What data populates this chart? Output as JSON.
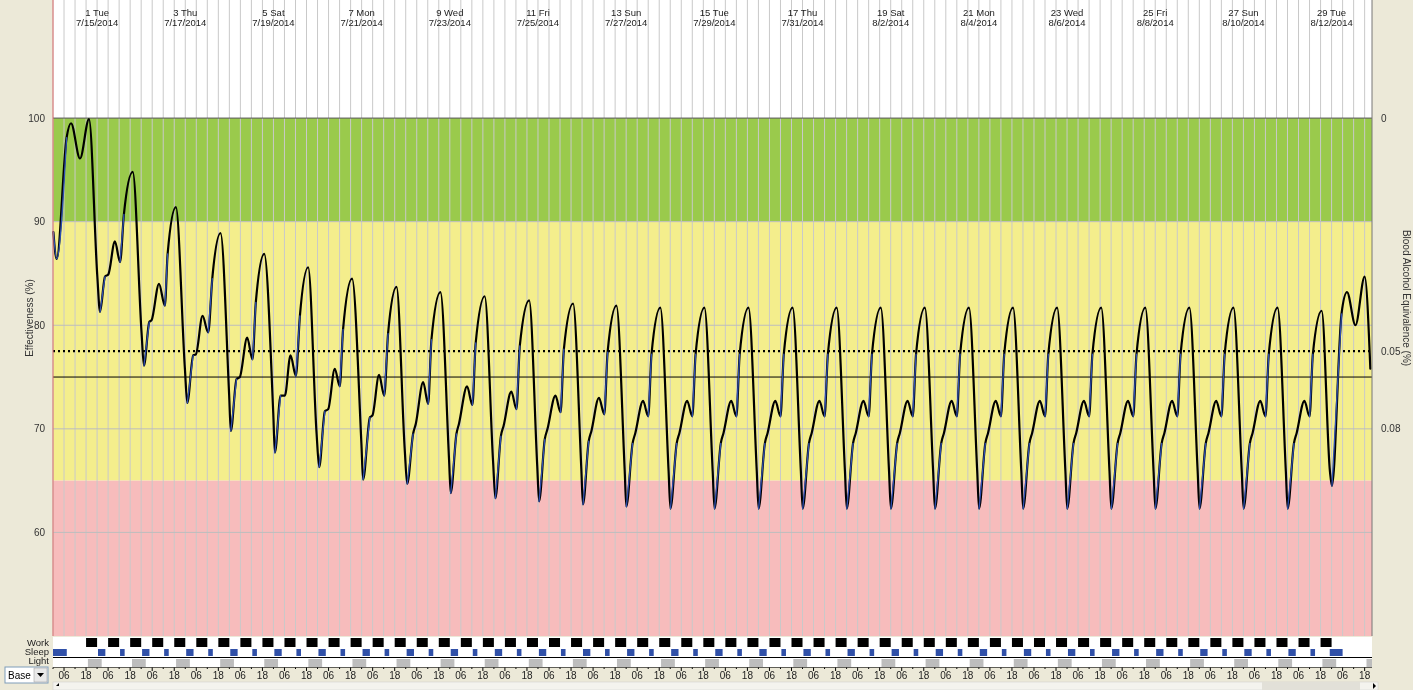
{
  "chart_data": {
    "type": "line",
    "ylabel": "Effectiveness (%)",
    "y2label": "Blood Alcohol Equivalence (%)",
    "xlim": [
      "2014-07-14T00:00",
      "2014-08-12T22:00"
    ],
    "xticks": [
      {
        "value": "2014-07-14T00:00",
        "label": null
      },
      {
        "value": "2014-07-14T06:00",
        "label": "06"
      },
      {
        "value": "2014-07-14T12:00",
        "label": null
      },
      {
        "value": "2014-07-14T18:00",
        "label": "18"
      },
      {
        "value": "2014-07-15T00:00",
        "label": null
      },
      {
        "value": "2014-07-15T06:00",
        "label": "06"
      },
      {
        "value": "2014-07-15T12:00",
        "label": null
      },
      {
        "value": "2014-07-15T18:00",
        "label": "18"
      },
      {
        "value": "2014-07-16T00:00",
        "label": null
      },
      {
        "value": "2014-07-16T06:00",
        "label": "06"
      },
      {
        "value": "2014-07-16T12:00",
        "label": null
      },
      {
        "value": "2014-07-16T18:00",
        "label": "18"
      },
      {
        "value": "2014-07-17T00:00",
        "label": null
      },
      {
        "value": "2014-07-17T06:00",
        "label": "06"
      },
      {
        "value": "2014-07-17T12:00",
        "label": null
      },
      {
        "value": "2014-07-17T18:00",
        "label": "18"
      },
      {
        "value": "2014-07-18T00:00",
        "label": null
      },
      {
        "value": "2014-07-18T06:00",
        "label": "06"
      },
      {
        "value": "2014-07-18T12:00",
        "label": null
      },
      {
        "value": "2014-07-18T18:00",
        "label": "18"
      },
      {
        "value": "2014-07-19T00:00",
        "label": null
      },
      {
        "value": "2014-07-19T06:00",
        "label": "06"
      },
      {
        "value": "2014-07-19T12:00",
        "label": null
      },
      {
        "value": "2014-07-19T18:00",
        "label": "18"
      },
      {
        "value": "2014-07-20T00:00",
        "label": null
      },
      {
        "value": "2014-07-20T06:00",
        "label": "06"
      },
      {
        "value": "2014-07-20T12:00",
        "label": null
      },
      {
        "value": "2014-07-20T18:00",
        "label": "18"
      },
      {
        "value": "2014-07-21T00:00",
        "label": null
      },
      {
        "value": "2014-07-21T06:00",
        "label": "06"
      },
      {
        "value": "2014-07-21T12:00",
        "label": null
      },
      {
        "value": "2014-07-21T18:00",
        "label": "18"
      },
      {
        "value": "2014-07-22T00:00",
        "label": null
      },
      {
        "value": "2014-07-22T06:00",
        "label": "06"
      },
      {
        "value": "2014-07-22T12:00",
        "label": null
      },
      {
        "value": "2014-07-22T18:00",
        "label": "18"
      },
      {
        "value": "2014-07-23T00:00",
        "label": null
      },
      {
        "value": "2014-07-23T06:00",
        "label": "06"
      },
      {
        "value": "2014-07-23T12:00",
        "label": null
      },
      {
        "value": "2014-07-23T18:00",
        "label": "18"
      },
      {
        "value": "2014-07-24T00:00",
        "label": null
      },
      {
        "value": "2014-07-24T06:00",
        "label": "06"
      },
      {
        "value": "2014-07-24T12:00",
        "label": null
      },
      {
        "value": "2014-07-24T18:00",
        "label": "18"
      },
      {
        "value": "2014-07-25T00:00",
        "label": null
      },
      {
        "value": "2014-07-25T06:00",
        "label": "06"
      },
      {
        "value": "2014-07-25T12:00",
        "label": null
      },
      {
        "value": "2014-07-25T18:00",
        "label": "18"
      },
      {
        "value": "2014-07-26T00:00",
        "label": null
      },
      {
        "value": "2014-07-26T06:00",
        "label": "06"
      },
      {
        "value": "2014-07-26T12:00",
        "label": null
      },
      {
        "value": "2014-07-26T18:00",
        "label": "18"
      },
      {
        "value": "2014-07-27T00:00",
        "label": null
      },
      {
        "value": "2014-07-27T06:00",
        "label": "06"
      },
      {
        "value": "2014-07-27T12:00",
        "label": null
      },
      {
        "value": "2014-07-27T18:00",
        "label": "18"
      },
      {
        "value": "2014-07-28T00:00",
        "label": null
      },
      {
        "value": "2014-07-28T06:00",
        "label": "06"
      },
      {
        "value": "2014-07-28T12:00",
        "label": null
      },
      {
        "value": "2014-07-28T18:00",
        "label": "18"
      },
      {
        "value": "2014-07-29T00:00",
        "label": null
      },
      {
        "value": "2014-07-29T06:00",
        "label": "06"
      },
      {
        "value": "2014-07-29T12:00",
        "label": null
      },
      {
        "value": "2014-07-29T18:00",
        "label": "18"
      },
      {
        "value": "2014-07-30T00:00",
        "label": null
      },
      {
        "value": "2014-07-30T06:00",
        "label": "06"
      },
      {
        "value": "2014-07-30T12:00",
        "label": null
      },
      {
        "value": "2014-07-30T18:00",
        "label": "18"
      },
      {
        "value": "2014-07-31T00:00",
        "label": null
      },
      {
        "value": "2014-07-31T06:00",
        "label": "06"
      },
      {
        "value": "2014-07-31T12:00",
        "label": null
      },
      {
        "value": "2014-07-31T18:00",
        "label": "18"
      },
      {
        "value": "2014-08-01T00:00",
        "label": null
      },
      {
        "value": "2014-08-01T06:00",
        "label": "06"
      },
      {
        "value": "2014-08-01T12:00",
        "label": null
      },
      {
        "value": "2014-08-01T18:00",
        "label": "18"
      },
      {
        "value": "2014-08-02T00:00",
        "label": null
      },
      {
        "value": "2014-08-02T06:00",
        "label": "06"
      },
      {
        "value": "2014-08-02T12:00",
        "label": null
      },
      {
        "value": "2014-08-02T18:00",
        "label": "18"
      },
      {
        "value": "2014-08-03T00:00",
        "label": null
      },
      {
        "value": "2014-08-03T06:00",
        "label": "06"
      },
      {
        "value": "2014-08-03T12:00",
        "label": null
      },
      {
        "value": "2014-08-03T18:00",
        "label": "18"
      },
      {
        "value": "2014-08-04T00:00",
        "label": null
      },
      {
        "value": "2014-08-04T06:00",
        "label": "06"
      },
      {
        "value": "2014-08-04T12:00",
        "label": null
      },
      {
        "value": "2014-08-04T18:00",
        "label": "18"
      },
      {
        "value": "2014-08-05T00:00",
        "label": null
      },
      {
        "value": "2014-08-05T06:00",
        "label": "06"
      },
      {
        "value": "2014-08-05T12:00",
        "label": null
      },
      {
        "value": "2014-08-05T18:00",
        "label": "18"
      },
      {
        "value": "2014-08-06T00:00",
        "label": null
      },
      {
        "value": "2014-08-06T06:00",
        "label": "06"
      },
      {
        "value": "2014-08-06T12:00",
        "label": null
      },
      {
        "value": "2014-08-06T18:00",
        "label": "18"
      },
      {
        "value": "2014-08-07T00:00",
        "label": null
      },
      {
        "value": "2014-08-07T06:00",
        "label": "06"
      },
      {
        "value": "2014-08-07T12:00",
        "label": null
      },
      {
        "value": "2014-08-07T18:00",
        "label": "18"
      },
      {
        "value": "2014-08-08T00:00",
        "label": null
      },
      {
        "value": "2014-08-08T06:00",
        "label": "06"
      },
      {
        "value": "2014-08-08T12:00",
        "label": null
      },
      {
        "value": "2014-08-08T18:00",
        "label": "18"
      },
      {
        "value": "2014-08-09T00:00",
        "label": null
      },
      {
        "value": "2014-08-09T06:00",
        "label": "06"
      },
      {
        "value": "2014-08-09T12:00",
        "label": null
      },
      {
        "value": "2014-08-09T18:00",
        "label": "18"
      },
      {
        "value": "2014-08-10T00:00",
        "label": null
      },
      {
        "value": "2014-08-10T06:00",
        "label": "06"
      },
      {
        "value": "2014-08-10T12:00",
        "label": null
      },
      {
        "value": "2014-08-10T18:00",
        "label": "18"
      },
      {
        "value": "2014-08-11T00:00",
        "label": null
      },
      {
        "value": "2014-08-11T06:00",
        "label": "06"
      },
      {
        "value": "2014-08-11T12:00",
        "label": null
      },
      {
        "value": "2014-08-11T18:00",
        "label": "18"
      },
      {
        "value": "2014-08-12T00:00",
        "label": null
      },
      {
        "value": "2014-08-12T06:00",
        "label": "06"
      },
      {
        "value": "2014-08-12T12:00",
        "label": null
      },
      {
        "value": "2014-08-12T18:00",
        "label": "18"
      }
    ],
    "x2lim": [
      "2014-07-14T00:00",
      "2014-08-12T22:00"
    ],
    "x2ticks": [
      {
        "value": "2014-07-15",
        "label": "1 Tue\n7/15/2014"
      },
      {
        "value": "2014-07-17",
        "label": "3 Thu\n7/17/2014"
      },
      {
        "value": "2014-07-19",
        "label": "5 Sat\n7/19/2014"
      },
      {
        "value": "2014-07-21",
        "label": "7 Mon\n7/21/2014"
      },
      {
        "value": "2014-07-23",
        "label": "9 Wed\n7/23/2014"
      },
      {
        "value": "2014-07-25",
        "label": "11 Fri\n7/25/2014"
      },
      {
        "value": "2014-07-27",
        "label": "13 Sun\n7/27/2014"
      },
      {
        "value": "2014-07-29",
        "label": "15 Tue\n7/29/2014"
      },
      {
        "value": "2014-07-31",
        "label": "17 Thu\n7/31/2014"
      },
      {
        "value": "2014-08-02",
        "label": "19 Sat\n8/2/2014"
      },
      {
        "value": "2014-08-04",
        "label": "21 Mon\n8/4/2014"
      },
      {
        "value": "2014-08-06",
        "label": "23 Wed\n8/6/2014"
      },
      {
        "value": "2014-08-08",
        "label": "25 Fri\n8/8/2014"
      },
      {
        "value": "2014-08-10",
        "label": "27 Sun\n8/10/2014"
      },
      {
        "value": "2014-08-12",
        "label": "29 Tue\n8/12/2014"
      }
    ],
    "ylim": [
      50,
      111.4
    ],
    "yticks": [
      60,
      70,
      80,
      90,
      100
    ],
    "grid": true,
    "bands": [
      {
        "axis": "y",
        "from": 90,
        "to": 100,
        "color": "#9aca4c"
      },
      {
        "axis": "y",
        "from": 65,
        "to": 90,
        "color": "#f4ee8c"
      },
      {
        "axis": "y",
        "from": 50,
        "to": 65,
        "color": "#f7bcbc"
      }
    ],
    "ref_lines": [
      {
        "axis": "y",
        "value": 100,
        "color": "#555555",
        "line_style": "solid"
      },
      {
        "axis": "y",
        "value": 77.5,
        "color": "#000000",
        "line_style": "dotted"
      },
      {
        "axis": "y",
        "value": 70,
        "color": "#bdbdbd",
        "line_style": "solid"
      },
      {
        "axis": "y",
        "value": 75,
        "color": "#000000",
        "line_style": "solid"
      }
    ],
    "annotations": [
      "Work",
      "Sleep",
      "Light",
      "Base",
      "0",
      "0.05",
      "0.08"
    ],
    "series": [
      {
        "color": "#000000",
        "x": [
          "2014-07-14T00:12",
          "2014-07-14T02:00",
          "2014-07-14T07:24",
          "2014-07-14T09:48",
          "2014-07-14T14:42",
          "2014-07-14T19:36",
          "2014-07-15T00:06",
          "2014-07-15T01:36",
          "2014-07-15T04:18",
          "2014-07-15T06:06",
          "2014-07-15T09:42",
          "2014-07-15T12:30",
          "2014-07-15T14:36",
          "2014-07-15T19:24",
          "2014-07-16T00:12",
          "2014-07-16T01:30",
          "2014-07-16T04:24",
          "2014-07-16T05:42",
          "2014-07-16T09:42",
          "2014-07-16T12:54",
          "2014-07-16T14:24",
          "2014-07-16T18:54",
          "2014-07-16T23:48",
          "2014-07-17T01:06",
          "2014-07-17T04:18",
          "2014-07-17T05:48",
          "2014-07-17T09:24",
          "2014-07-17T12:30",
          "2014-07-17T14:42",
          "2014-07-17T19:12",
          "2014-07-17T23:54",
          "2014-07-18T00:48",
          "2014-07-18T03:54",
          "2014-07-18T05:42",
          "2014-07-18T09:42",
          "2014-07-18T12:36",
          "2014-07-18T14:24",
          "2014-07-18T19:00",
          "2014-07-18T23:54",
          "2014-07-19T00:48",
          "2014-07-19T03:54",
          "2014-07-19T06:12",
          "2014-07-19T09:18",
          "2014-07-19T12:12",
          "2014-07-19T14:24",
          "2014-07-19T18:54",
          "2014-07-19T23:30",
          "2014-07-20T00:54",
          "2014-07-20T04:00",
          "2014-07-20T05:48",
          "2014-07-20T09:24",
          "2014-07-20T12:06",
          "2014-07-20T13:54",
          "2014-07-20T18:48",
          "2014-07-20T23:54",
          "2014-07-21T00:48",
          "2014-07-21T04:30",
          "2014-07-21T05:54",
          "2014-07-21T09:30",
          "2014-07-21T12:18",
          "2014-07-21T14:24",
          "2014-07-21T19:00",
          "2014-07-21T23:30",
          "2014-07-22T00:48",
          "2014-07-22T04:00",
          "2014-07-22T05:30",
          "2014-07-22T09:30",
          "2014-07-22T12:12",
          "2014-07-22T14:00",
          "2014-07-22T18:54",
          "2014-07-22T23:36",
          "2014-07-23T00:30",
          "2014-07-23T03:36",
          "2014-07-23T05:00",
          "2014-07-23T09:24",
          "2014-07-23T12:18",
          "2014-07-23T14:06",
          "2014-07-23T19:00",
          "2014-07-23T23:36",
          "2014-07-24T00:48",
          "2014-07-24T03:48",
          "2014-07-24T05:18",
          "2014-07-24T09:30",
          "2014-07-24T12:18",
          "2014-07-24T14:06",
          "2014-07-24T19:12",
          "2014-07-24T23:36",
          "2014-07-25T00:36",
          "2014-07-25T03:42",
          "2014-07-25T05:12",
          "2014-07-25T09:30",
          "2014-07-25T12:18",
          "2014-07-25T14:06",
          "2014-07-25T19:06",
          "2014-07-25T23:36",
          "2014-07-26T00:30",
          "2014-07-26T03:36",
          "2014-07-26T05:06",
          "2014-07-26T09:12",
          "2014-07-26T12:06",
          "2014-07-26T13:54",
          "2014-07-26T18:42",
          "2014-07-26T23:12",
          "2014-07-27T00:06",
          "2014-07-27T03:30",
          "2014-07-27T05:00",
          "2014-07-27T09:12",
          "2014-07-27T12:00",
          "2014-07-27T13:48",
          "2014-07-27T18:36",
          "2014-07-27T23:06",
          "2014-07-28T00:06",
          "2014-07-28T03:30",
          "2014-07-28T05:00",
          "2014-07-28T09:12",
          "2014-07-28T12:00",
          "2014-07-28T13:48",
          "2014-07-28T18:36",
          "2014-07-28T23:06",
          "2014-07-29T00:06",
          "2014-07-29T03:30",
          "2014-07-29T05:00",
          "2014-07-29T09:12",
          "2014-07-29T12:00",
          "2014-07-29T13:48",
          "2014-07-29T18:36",
          "2014-07-29T23:06",
          "2014-07-30T00:06",
          "2014-07-30T03:30",
          "2014-07-30T05:00",
          "2014-07-30T09:12",
          "2014-07-30T12:00",
          "2014-07-30T13:48",
          "2014-07-30T18:36",
          "2014-07-30T23:06",
          "2014-07-31T00:06",
          "2014-07-31T03:30",
          "2014-07-31T05:00",
          "2014-07-31T09:12",
          "2014-07-31T12:00",
          "2014-07-31T13:48",
          "2014-07-31T18:36",
          "2014-07-31T23:06",
          "2014-08-01T00:06",
          "2014-08-01T03:30",
          "2014-08-01T05:00",
          "2014-08-01T09:12",
          "2014-08-01T12:00",
          "2014-08-01T13:48",
          "2014-08-01T18:36",
          "2014-08-01T23:06",
          "2014-08-02T00:06",
          "2014-08-02T03:30",
          "2014-08-02T05:00",
          "2014-08-02T09:12",
          "2014-08-02T12:00",
          "2014-08-02T13:48",
          "2014-08-02T18:36",
          "2014-08-02T23:06",
          "2014-08-03T00:06",
          "2014-08-03T03:30",
          "2014-08-03T05:00",
          "2014-08-03T09:12",
          "2014-08-03T12:00",
          "2014-08-03T13:48",
          "2014-08-03T18:36",
          "2014-08-03T23:06",
          "2014-08-04T00:06",
          "2014-08-04T03:30",
          "2014-08-04T05:00",
          "2014-08-04T09:12",
          "2014-08-04T12:00",
          "2014-08-04T13:48",
          "2014-08-04T18:36",
          "2014-08-04T23:06",
          "2014-08-05T00:06",
          "2014-08-05T03:30",
          "2014-08-05T05:00",
          "2014-08-05T09:12",
          "2014-08-05T12:00",
          "2014-08-05T13:48",
          "2014-08-05T18:36",
          "2014-08-05T23:06",
          "2014-08-06T00:06",
          "2014-08-06T03:30",
          "2014-08-06T05:00",
          "2014-08-06T09:12",
          "2014-08-06T12:00",
          "2014-08-06T13:48",
          "2014-08-06T18:36",
          "2014-08-06T23:06",
          "2014-08-07T00:06",
          "2014-08-07T03:30",
          "2014-08-07T05:00",
          "2014-08-07T09:12",
          "2014-08-07T12:00",
          "2014-08-07T13:48",
          "2014-08-07T18:36",
          "2014-08-07T23:06",
          "2014-08-08T00:06",
          "2014-08-08T03:30",
          "2014-08-08T05:00",
          "2014-08-08T09:12",
          "2014-08-08T12:00",
          "2014-08-08T13:48",
          "2014-08-08T18:36",
          "2014-08-08T23:06",
          "2014-08-09T00:06",
          "2014-08-09T03:30",
          "2014-08-09T05:00",
          "2014-08-09T09:12",
          "2014-08-09T12:00",
          "2014-08-09T13:48",
          "2014-08-09T18:36",
          "2014-08-09T23:06",
          "2014-08-10T00:06",
          "2014-08-10T03:30",
          "2014-08-10T05:00",
          "2014-08-10T09:12",
          "2014-08-10T12:00",
          "2014-08-10T13:48",
          "2014-08-10T18:36",
          "2014-08-10T23:06",
          "2014-08-11T00:06",
          "2014-08-11T03:30",
          "2014-08-11T05:00",
          "2014-08-11T09:12",
          "2014-08-11T12:00",
          "2014-08-11T13:48",
          "2014-08-11T18:36",
          "2014-08-11T23:06",
          "2014-08-12T00:12",
          "2014-08-12T05:24",
          "2014-08-12T08:24",
          "2014-08-12T13:00",
          "2014-08-12T18:00",
          "2014-08-12T21:06"
        ],
        "values": [
          89.0,
          86.4,
          98.1,
          99.5,
          96.1,
          99.9,
          84.8,
          81.3,
          84.7,
          84.9,
          88.1,
          86.1,
          90.7,
          94.8,
          79.3,
          76.1,
          80.3,
          80.5,
          84.0,
          81.9,
          86.9,
          91.4,
          75.8,
          72.5,
          77.1,
          77.2,
          80.9,
          79.3,
          84.5,
          88.9,
          73.2,
          69.8,
          74.8,
          75.0,
          78.8,
          76.7,
          82.2,
          86.9,
          71.5,
          67.7,
          73.2,
          73.2,
          77.1,
          75.1,
          80.9,
          85.6,
          69.5,
          66.3,
          71.7,
          71.9,
          75.8,
          74.1,
          79.6,
          84.5,
          68.5,
          65.1,
          71.1,
          71.3,
          75.2,
          73.2,
          79.2,
          83.7,
          67.9,
          64.7,
          69.5,
          70.5,
          74.5,
          72.4,
          78.6,
          83.2,
          67.0,
          63.8,
          69.5,
          70.5,
          74.1,
          72.3,
          78.3,
          82.8,
          66.7,
          63.3,
          69.3,
          70.3,
          73.6,
          71.9,
          78.0,
          82.4,
          66.4,
          63.0,
          69.0,
          70.0,
          73.2,
          71.6,
          77.7,
          82.1,
          66.1,
          62.7,
          68.8,
          69.8,
          73.0,
          71.4,
          77.4,
          81.9,
          66.0,
          62.5,
          68.6,
          69.6,
          72.7,
          71.2,
          77.2,
          81.7,
          65.9,
          62.3,
          68.6,
          69.6,
          72.7,
          71.2,
          77.2,
          81.7,
          65.9,
          62.3,
          68.6,
          69.6,
          72.7,
          71.2,
          77.2,
          81.7,
          65.9,
          62.3,
          68.6,
          69.6,
          72.7,
          71.2,
          77.2,
          81.7,
          65.9,
          62.3,
          68.6,
          69.6,
          72.7,
          71.2,
          77.2,
          81.7,
          65.9,
          62.3,
          68.6,
          69.6,
          72.7,
          71.2,
          77.2,
          81.7,
          65.9,
          62.3,
          68.6,
          69.6,
          72.7,
          71.2,
          77.2,
          81.7,
          65.9,
          62.3,
          68.6,
          69.6,
          72.7,
          71.2,
          77.2,
          81.7,
          65.9,
          62.3,
          68.6,
          69.6,
          72.7,
          71.2,
          77.2,
          81.7,
          65.9,
          62.3,
          68.6,
          69.6,
          72.7,
          71.2,
          77.2,
          81.7,
          65.9,
          62.3,
          68.6,
          69.6,
          72.7,
          71.2,
          77.2,
          81.7,
          65.9,
          62.3,
          68.6,
          69.6,
          72.7,
          71.2,
          77.2,
          81.7,
          65.9,
          62.3,
          68.6,
          69.6,
          72.7,
          71.2,
          77.2,
          81.7,
          65.9,
          62.3,
          68.6,
          69.6,
          72.7,
          71.2,
          77.2,
          81.7,
          65.9,
          62.3,
          68.6,
          69.6,
          72.7,
          71.2,
          77.2,
          81.7,
          65.9,
          62.3,
          68.6,
          69.6,
          72.7,
          71.2,
          77.2,
          81.4,
          65.9,
          64.5,
          81.1,
          83.2,
          80.0,
          84.7,
          75.8
        ]
      },
      {
        "color": "#2e4fb0",
        "x": [
          "2014-07-14T00:12",
          "2014-07-14T02:00",
          "2014-07-14T07:24",
          "2014-07-14T16:00",
          "2014-07-15T01:36",
          "2014-07-15T04:18",
          "2014-07-15T08:00",
          "2014-07-15T12:30",
          "2014-07-15T14:36",
          "2014-07-15T20:00",
          "2014-07-16T01:30",
          "2014-07-16T04:24",
          "2014-07-16T08:00",
          "2014-07-16T12:54",
          "2014-07-16T14:24",
          "2014-07-16T20:00",
          "2014-07-17T01:06",
          "2014-07-17T04:18",
          "2014-07-17T08:00",
          "2014-07-17T12:30",
          "2014-07-17T14:42",
          "2014-07-17T20:00",
          "2014-07-18T00:48",
          "2014-07-18T03:54",
          "2014-07-18T08:00",
          "2014-07-18T12:36",
          "2014-07-18T14:24",
          "2014-07-18T20:00",
          "2014-07-19T00:48",
          "2014-07-19T03:54",
          "2014-07-19T08:00",
          "2014-07-19T12:12",
          "2014-07-19T14:24",
          "2014-07-19T20:00",
          "2014-07-20T00:54",
          "2014-07-20T04:00",
          "2014-07-20T08:00",
          "2014-07-20T12:06",
          "2014-07-20T13:54",
          "2014-07-20T20:00",
          "2014-07-21T00:48",
          "2014-07-21T04:30",
          "2014-07-21T08:00",
          "2014-07-21T12:18",
          "2014-07-21T14:24",
          "2014-07-21T20:00",
          "2014-07-22T00:48",
          "2014-07-22T04:00",
          "2014-07-22T08:00",
          "2014-07-22T12:12",
          "2014-07-22T14:00",
          "2014-07-22T20:00",
          "2014-07-23T00:30",
          "2014-07-23T03:36",
          "2014-07-23T08:00",
          "2014-07-23T12:18",
          "2014-07-23T14:06",
          "2014-07-23T20:00",
          "2014-07-24T00:48",
          "2014-07-24T03:48",
          "2014-07-24T08:00",
          "2014-07-24T12:18",
          "2014-07-24T14:06",
          "2014-07-24T20:00",
          "2014-07-25T00:36",
          "2014-07-25T03:42",
          "2014-07-25T08:00",
          "2014-07-25T12:18",
          "2014-07-25T14:06",
          "2014-07-25T20:00",
          "2014-07-26T00:30",
          "2014-07-26T03:36",
          "2014-07-26T08:00",
          "2014-07-26T12:06",
          "2014-07-26T13:54",
          "2014-07-26T20:00",
          "2014-07-27T00:06",
          "2014-07-27T03:30",
          "2014-07-27T08:00",
          "2014-07-27T12:00",
          "2014-07-27T13:48",
          "2014-07-27T20:00",
          "2014-07-28T00:06",
          "2014-07-28T03:30",
          "2014-07-28T08:00",
          "2014-07-28T12:00",
          "2014-07-28T13:48",
          "2014-07-28T20:00",
          "2014-07-29T00:06",
          "2014-07-29T03:30",
          "2014-07-29T08:00",
          "2014-07-29T12:00",
          "2014-07-29T13:48",
          "2014-07-29T20:00",
          "2014-07-30T00:06",
          "2014-07-30T03:30",
          "2014-07-30T08:00",
          "2014-07-30T12:00",
          "2014-07-30T13:48",
          "2014-07-30T20:00",
          "2014-07-31T00:06",
          "2014-07-31T03:30",
          "2014-07-31T08:00",
          "2014-07-31T12:00",
          "2014-07-31T13:48",
          "2014-07-31T20:00",
          "2014-08-01T00:06",
          "2014-08-01T03:30",
          "2014-08-01T08:00",
          "2014-08-01T12:00",
          "2014-08-01T13:48",
          "2014-08-01T20:00",
          "2014-08-02T00:06",
          "2014-08-02T03:30",
          "2014-08-02T08:00",
          "2014-08-02T12:00",
          "2014-08-02T13:48",
          "2014-08-02T20:00",
          "2014-08-03T00:06",
          "2014-08-03T03:30",
          "2014-08-03T08:00",
          "2014-08-03T12:00",
          "2014-08-03T13:48",
          "2014-08-03T20:00",
          "2014-08-04T00:06",
          "2014-08-04T03:30",
          "2014-08-04T08:00",
          "2014-08-04T12:00",
          "2014-08-04T13:48",
          "2014-08-04T20:00",
          "2014-08-05T00:06",
          "2014-08-05T03:30",
          "2014-08-05T08:00",
          "2014-08-05T12:00",
          "2014-08-05T13:48",
          "2014-08-05T20:00",
          "2014-08-06T00:06",
          "2014-08-06T03:30",
          "2014-08-06T08:00",
          "2014-08-06T12:00",
          "2014-08-06T13:48",
          "2014-08-06T20:00",
          "2014-08-07T00:06",
          "2014-08-07T03:30",
          "2014-08-07T08:00",
          "2014-08-07T12:00",
          "2014-08-07T13:48",
          "2014-08-07T20:00",
          "2014-08-08T00:06",
          "2014-08-08T03:30",
          "2014-08-08T08:00",
          "2014-08-08T12:00",
          "2014-08-08T13:48",
          "2014-08-08T20:00",
          "2014-08-09T00:06",
          "2014-08-09T03:30",
          "2014-08-09T08:00",
          "2014-08-09T12:00",
          "2014-08-09T13:48",
          "2014-08-09T20:00",
          "2014-08-10T00:06",
          "2014-08-10T03:30",
          "2014-08-10T08:00",
          "2014-08-10T12:00",
          "2014-08-10T13:48",
          "2014-08-10T20:00",
          "2014-08-11T00:06",
          "2014-08-11T03:30",
          "2014-08-11T08:00",
          "2014-08-11T12:00",
          "2014-08-11T13:48",
          "2014-08-11T20:00",
          "2014-08-12T00:12",
          "2014-08-12T05:24"
        ],
        "values": [
          89.0,
          86.4,
          98.1,
          null,
          81.3,
          84.7,
          null,
          86.1,
          90.7,
          null,
          76.1,
          80.3,
          null,
          81.9,
          86.9,
          null,
          72.5,
          77.1,
          null,
          79.3,
          84.5,
          null,
          69.8,
          74.8,
          null,
          76.7,
          82.2,
          null,
          67.7,
          73.2,
          null,
          75.1,
          80.9,
          null,
          66.3,
          71.7,
          null,
          74.1,
          79.6,
          null,
          65.1,
          71.1,
          null,
          73.2,
          79.2,
          null,
          64.7,
          69.5,
          null,
          72.4,
          78.6,
          null,
          63.8,
          69.5,
          null,
          72.3,
          78.3,
          null,
          63.3,
          69.3,
          null,
          71.9,
          78.0,
          null,
          63.0,
          69.0,
          null,
          71.6,
          77.7,
          null,
          62.7,
          68.8,
          null,
          71.4,
          77.4,
          null,
          62.5,
          68.6,
          null,
          71.2,
          77.2,
          null,
          62.3,
          68.6,
          null,
          71.2,
          77.2,
          null,
          62.3,
          68.6,
          null,
          71.2,
          77.2,
          null,
          62.3,
          68.6,
          null,
          71.2,
          77.2,
          null,
          62.3,
          68.6,
          null,
          71.2,
          77.2,
          null,
          62.3,
          68.6,
          null,
          71.2,
          77.2,
          null,
          62.3,
          68.6,
          null,
          71.2,
          77.2,
          null,
          62.3,
          68.6,
          null,
          71.2,
          77.2,
          null,
          62.3,
          68.6,
          null,
          71.2,
          77.2,
          null,
          62.3,
          68.6,
          null,
          71.2,
          77.2,
          null,
          62.3,
          68.6,
          null,
          71.2,
          77.2,
          null,
          62.3,
          68.6,
          null,
          71.2,
          77.2,
          null,
          62.3,
          68.6,
          null,
          71.2,
          77.2,
          null,
          62.3,
          68.6,
          null,
          71.2,
          77.2,
          null,
          62.3,
          68.6,
          null,
          71.2,
          77.2,
          null,
          62.3,
          68.6,
          null,
          71.2,
          77.2,
          null,
          64.5,
          81.1
        ]
      }
    ]
  }
}
